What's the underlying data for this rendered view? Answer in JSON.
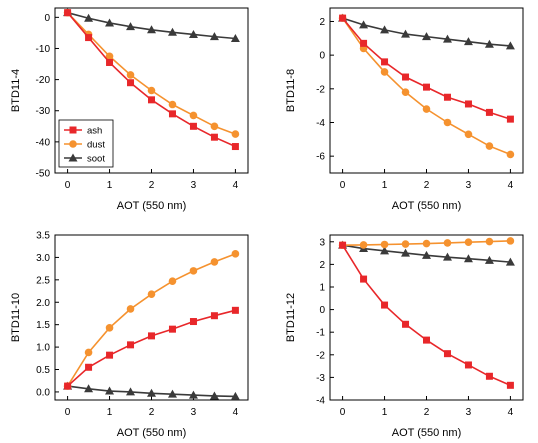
{
  "chart_data": [
    {
      "type": "line",
      "xlabel": "AOT (550 nm)",
      "ylabel": "BTD11-4",
      "xlim": [
        -0.3,
        4.3
      ],
      "ylim": [
        -50,
        3
      ],
      "xticks": [
        0,
        1,
        2,
        3,
        4
      ],
      "yticks": [
        0,
        -10,
        -20,
        -30,
        -40,
        -50
      ],
      "x": [
        0,
        0.5,
        1,
        1.5,
        2,
        2.5,
        3,
        3.5,
        4
      ],
      "series": [
        {
          "name": "ash",
          "color": "#e8272a",
          "marker": "square",
          "values": [
            1.5,
            -6.5,
            -14.5,
            -21,
            -26.5,
            -31,
            -35,
            -38.5,
            -41.5
          ]
        },
        {
          "name": "dust",
          "color": "#f5922f",
          "marker": "circle",
          "values": [
            1.5,
            -5.5,
            -12.5,
            -18.5,
            -23.5,
            -28,
            -31.5,
            -35,
            -37.5
          ]
        },
        {
          "name": "soot",
          "color": "#3a3a3a",
          "marker": "triangle",
          "values": [
            1.5,
            -0.3,
            -1.8,
            -3,
            -4,
            -4.8,
            -5.5,
            -6.2,
            -6.8
          ]
        }
      ],
      "legend": "bottom-left"
    },
    {
      "type": "line",
      "xlabel": "AOT (550 nm)",
      "ylabel": "BTD11-8",
      "xlim": [
        -0.3,
        4.3
      ],
      "ylim": [
        -7,
        2.8
      ],
      "xticks": [
        0,
        1,
        2,
        3,
        4
      ],
      "yticks": [
        2,
        0,
        -2,
        -4,
        -6
      ],
      "x": [
        0,
        0.5,
        1,
        1.5,
        2,
        2.5,
        3,
        3.5,
        4
      ],
      "series": [
        {
          "name": "ash",
          "color": "#e8272a",
          "marker": "square",
          "values": [
            2.2,
            0.7,
            -0.4,
            -1.3,
            -1.9,
            -2.5,
            -2.9,
            -3.4,
            -3.8
          ]
        },
        {
          "name": "dust",
          "color": "#f5922f",
          "marker": "circle",
          "values": [
            2.2,
            0.4,
            -1.0,
            -2.2,
            -3.2,
            -4.0,
            -4.7,
            -5.4,
            -5.9
          ]
        },
        {
          "name": "soot",
          "color": "#3a3a3a",
          "marker": "triangle",
          "values": [
            2.2,
            1.8,
            1.5,
            1.25,
            1.1,
            0.95,
            0.8,
            0.65,
            0.55
          ]
        }
      ]
    },
    {
      "type": "line",
      "xlabel": "AOT (550 nm)",
      "ylabel": "BTD11-10",
      "xlim": [
        -0.3,
        4.3
      ],
      "ylim": [
        -0.18,
        3.5
      ],
      "xticks": [
        0,
        1,
        2,
        3,
        4
      ],
      "yticks": [
        0.0,
        0.5,
        1.0,
        1.5,
        2.0,
        2.5,
        3.0,
        3.5
      ],
      "ytick_labels": [
        "0.0",
        "0.5",
        "1.0",
        "1.5",
        "2.0",
        "2.5",
        "3.0",
        "3.5"
      ],
      "x": [
        0,
        0.5,
        1,
        1.5,
        2,
        2.5,
        3,
        3.5,
        4
      ],
      "series": [
        {
          "name": "ash",
          "color": "#e8272a",
          "marker": "square",
          "values": [
            0.13,
            0.55,
            0.82,
            1.05,
            1.25,
            1.4,
            1.57,
            1.7,
            1.82
          ]
        },
        {
          "name": "dust",
          "color": "#f5922f",
          "marker": "circle",
          "values": [
            0.13,
            0.88,
            1.43,
            1.85,
            2.18,
            2.47,
            2.7,
            2.9,
            3.08
          ]
        },
        {
          "name": "soot",
          "color": "#3a3a3a",
          "marker": "triangle",
          "values": [
            0.13,
            0.07,
            0.02,
            0.0,
            -0.03,
            -0.05,
            -0.07,
            -0.09,
            -0.1
          ]
        }
      ]
    },
    {
      "type": "line",
      "xlabel": "AOT (550 nm)",
      "ylabel": "BTD11-12",
      "xlim": [
        -0.3,
        4.3
      ],
      "ylim": [
        -4,
        3.3
      ],
      "xticks": [
        0,
        1,
        2,
        3,
        4
      ],
      "yticks": [
        3,
        2,
        1,
        0,
        -1,
        -2,
        -3,
        -4
      ],
      "x": [
        0,
        0.5,
        1,
        1.5,
        2,
        2.5,
        3,
        3.5,
        4
      ],
      "series": [
        {
          "name": "ash",
          "color": "#e8272a",
          "marker": "square",
          "values": [
            2.85,
            1.35,
            0.2,
            -0.65,
            -1.35,
            -1.95,
            -2.45,
            -2.95,
            -3.35
          ]
        },
        {
          "name": "dust",
          "color": "#f5922f",
          "marker": "circle",
          "values": [
            2.85,
            2.86,
            2.88,
            2.9,
            2.92,
            2.95,
            2.98,
            3.01,
            3.04
          ]
        },
        {
          "name": "soot",
          "color": "#3a3a3a",
          "marker": "triangle",
          "values": [
            2.85,
            2.7,
            2.6,
            2.5,
            2.4,
            2.32,
            2.25,
            2.18,
            2.1
          ]
        }
      ]
    }
  ]
}
